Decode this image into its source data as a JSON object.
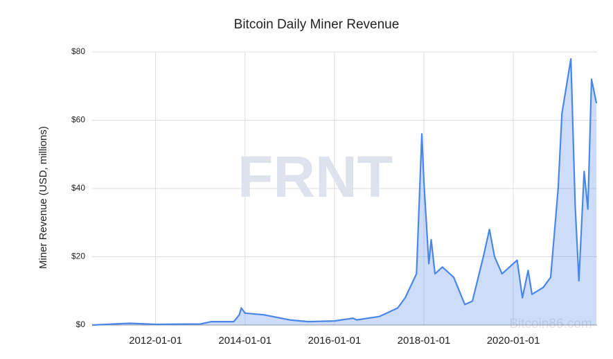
{
  "chart_data": {
    "type": "area",
    "title": "Bitcoin Daily Miner Revenue",
    "y_label": "Miner Revenue (USD, millions)",
    "watermark": "FRNT",
    "watermark2": "Bitcoin86.com",
    "x": [
      "2010-08-01",
      "2011-06-01",
      "2012-01-01",
      "2013-01-01",
      "2013-04-01",
      "2013-10-01",
      "2013-11-15",
      "2013-12-01",
      "2014-01-01",
      "2014-06-01",
      "2015-01-01",
      "2015-06-01",
      "2016-01-01",
      "2016-06-01",
      "2016-07-01",
      "2017-01-01",
      "2017-06-01",
      "2017-08-01",
      "2017-11-01",
      "2017-12-15",
      "2018-01-01",
      "2018-02-10",
      "2018-03-01",
      "2018-04-01",
      "2018-06-01",
      "2018-09-01",
      "2018-12-01",
      "2019-02-01",
      "2019-05-01",
      "2019-06-20",
      "2019-08-01",
      "2019-10-01",
      "2019-12-01",
      "2020-02-01",
      "2020-03-15",
      "2020-05-01",
      "2020-06-01",
      "2020-09-01",
      "2020-11-01",
      "2021-01-01",
      "2021-02-01",
      "2021-04-15",
      "2021-05-20",
      "2021-06-20",
      "2021-08-01",
      "2021-09-01",
      "2021-10-01",
      "2021-11-10"
    ],
    "series": [
      {
        "name": "Miner Revenue",
        "color": "#4a86e8",
        "values": [
          0,
          0.5,
          0.2,
          0.3,
          1,
          1,
          3,
          5,
          3.5,
          3,
          1.5,
          1,
          1.2,
          2,
          1.5,
          2.5,
          5,
          8,
          15,
          56,
          42,
          18,
          25,
          15,
          17,
          14,
          6,
          7,
          20,
          28,
          20,
          15,
          17,
          19,
          8,
          16,
          9,
          11,
          14,
          40,
          62,
          78,
          35,
          13,
          45,
          34,
          72,
          65
        ]
      }
    ],
    "xlim": [
      "2010-08-01",
      "2021-11-15"
    ],
    "xticks": [
      "2012-01-01",
      "2014-01-01",
      "2016-01-01",
      "2018-01-01",
      "2020-01-01"
    ],
    "ylim": [
      0,
      80
    ],
    "yticks": [
      {
        "value": 0,
        "label": "$0"
      },
      {
        "value": 20,
        "label": "$20"
      },
      {
        "value": 40,
        "label": "$40"
      },
      {
        "value": 60,
        "label": "$60"
      },
      {
        "value": 80,
        "label": "$80"
      }
    ],
    "grid": true
  }
}
